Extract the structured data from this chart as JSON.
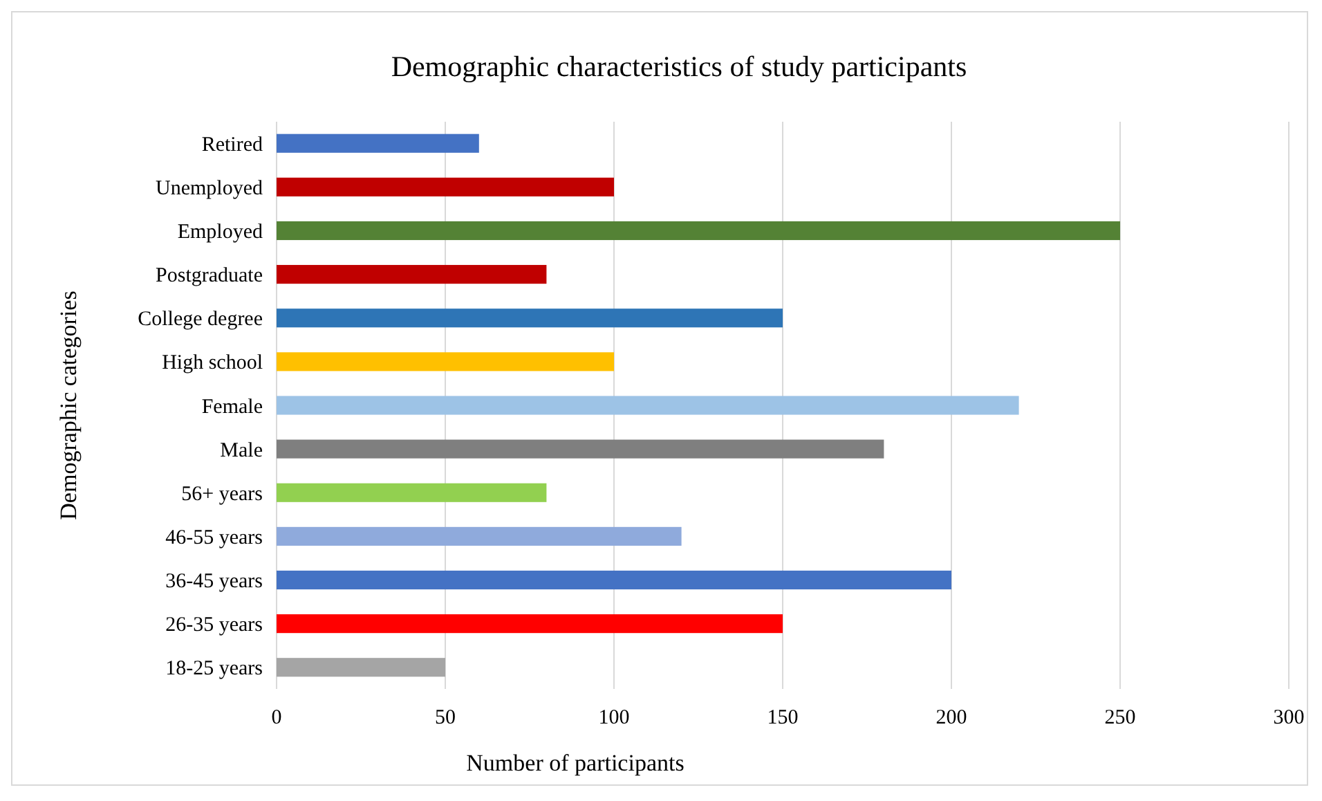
{
  "chart_data": {
    "type": "bar",
    "orientation": "horizontal",
    "title": "Demographic characteristics  of study participants",
    "xlabel": "Number of participants",
    "ylabel": "Demographic categories",
    "categories": [
      "Retired",
      "Unemployed",
      "Employed",
      "Postgraduate",
      "College degree",
      "High school",
      "Female",
      "Male",
      "56+ years",
      "46-55 years",
      "36-45 years",
      "26-35 years",
      "18-25 years"
    ],
    "values": [
      60,
      100,
      250,
      80,
      150,
      100,
      220,
      180,
      80,
      120,
      200,
      150,
      50
    ],
    "colors": [
      "#4472c4",
      "#c00000",
      "#548235",
      "#c00000",
      "#2e75b6",
      "#ffc000",
      "#9dc3e6",
      "#7f7f7f",
      "#92d050",
      "#8faadc",
      "#4472c4",
      "#ff0000",
      "#a5a5a5"
    ],
    "xlim": [
      0,
      300
    ],
    "xticks": [
      0,
      50,
      100,
      150,
      200,
      250,
      300
    ],
    "grid": "x"
  }
}
